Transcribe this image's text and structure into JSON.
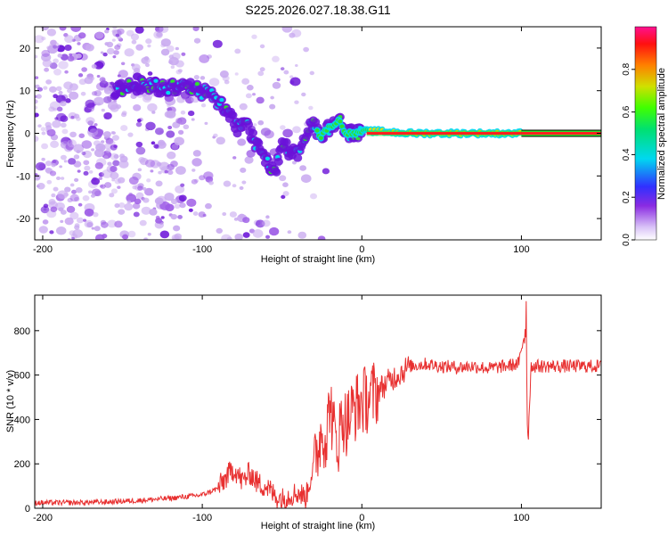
{
  "title": "S225.2026.027.18.38.G11",
  "colors": {
    "snr_line": "#e83030",
    "axis": "#000000",
    "dot_light": "#c9aaf0",
    "dot_mid": "#9d5ce6",
    "dot_dark": "#6a12d8",
    "cyan": "#00d8f0",
    "green": "#30e030",
    "red": "#ff2020",
    "yellow": "#e0e000"
  },
  "chart_data": [
    {
      "type": "heatmap",
      "title": "S225.2026.027.18.38.G11",
      "xlabel": "Height of straight line (km)",
      "ylabel": "Frequency (Hz)",
      "xlim": [
        -205,
        150
      ],
      "ylim": [
        -25,
        25
      ],
      "x_ticks": [
        -200,
        -100,
        0,
        100
      ],
      "y_ticks": [
        -20,
        -10,
        0,
        10,
        20
      ],
      "colorbar": {
        "label": "Normalized spectral amplitude",
        "range": [
          0,
          1
        ],
        "ticks": [
          "0.0",
          "0.2",
          "0.4",
          "0.6",
          "0.8"
        ],
        "tick_values": [
          0.0,
          0.2,
          0.4,
          0.6,
          0.8
        ]
      },
      "ridge": {
        "description": "dominant frequency trace",
        "x": [
          -155,
          -145,
          -135,
          -125,
          -115,
          -105,
          -95,
          -88,
          -82,
          -78,
          -72,
          -66,
          -62,
          -58,
          -54,
          -50,
          -46,
          -42,
          -38,
          -34,
          -30,
          -26,
          -22,
          -18,
          -14,
          -10,
          -6,
          -2,
          0,
          10,
          30,
          60,
          100,
          150
        ],
        "y": [
          10,
          11,
          11.5,
          10.5,
          11,
          10.5,
          9,
          7,
          4,
          1,
          2,
          -3,
          -5,
          -8,
          -9,
          -2,
          -4,
          -5,
          -4,
          1,
          2,
          -1,
          1,
          2,
          3,
          0,
          0,
          0,
          0.5,
          0.5,
          0,
          0,
          0,
          0
        ]
      }
    },
    {
      "type": "line",
      "xlabel": "Height of straight line (km)",
      "ylabel": "SNR (10 * v/v)",
      "xlim": [
        -205,
        150
      ],
      "ylim": [
        0,
        960
      ],
      "x_ticks": [
        -200,
        -100,
        0,
        100
      ],
      "y_ticks": [
        0,
        200,
        400,
        600,
        800
      ],
      "series": [
        {
          "name": "SNR",
          "x": [
            -205,
            -180,
            -160,
            -140,
            -120,
            -100,
            -90,
            -85,
            -80,
            -75,
            -70,
            -65,
            -60,
            -55,
            -50,
            -45,
            -40,
            -35,
            -30,
            -25,
            -22,
            -20,
            -18,
            -15,
            -12,
            -10,
            -5,
            0,
            5,
            10,
            20,
            30,
            40,
            50,
            60,
            70,
            80,
            90,
            98,
            100,
            102,
            103,
            104,
            106,
            110,
            120,
            130,
            140,
            150
          ],
          "values": [
            25,
            25,
            28,
            35,
            45,
            60,
            90,
            140,
            180,
            120,
            160,
            110,
            100,
            60,
            40,
            60,
            70,
            50,
            200,
            350,
            320,
            500,
            350,
            300,
            420,
            380,
            450,
            480,
            500,
            530,
            590,
            640,
            650,
            640,
            635,
            640,
            630,
            640,
            650,
            700,
            800,
            960,
            260,
            640,
            640,
            640,
            640,
            640,
            640
          ]
        }
      ]
    }
  ]
}
